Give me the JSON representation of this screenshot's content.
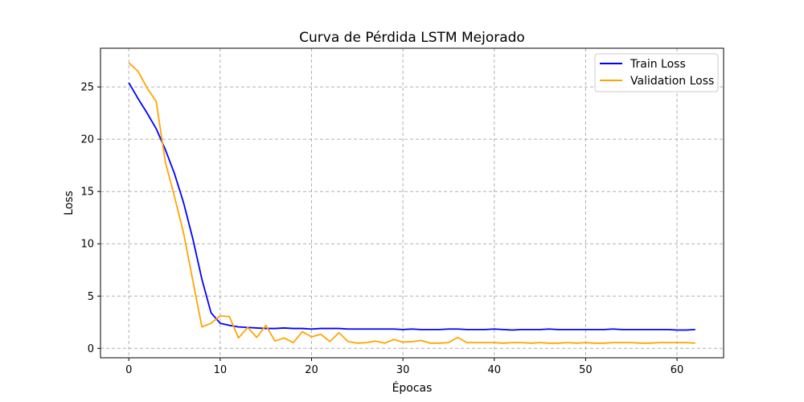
{
  "chart_data": {
    "type": "line",
    "title": "Curva de Pérdida LSTM Mejorado",
    "xlabel": "Épocas",
    "ylabel": "Loss",
    "xlim": [
      -3.1,
      65.1
    ],
    "ylim": [
      -0.9,
      28.7
    ],
    "x_ticks": [
      0,
      10,
      20,
      30,
      40,
      50,
      60
    ],
    "y_ticks": [
      0,
      5,
      10,
      15,
      20,
      25
    ],
    "grid": true,
    "legend_position": "top-right",
    "x": [
      0,
      1,
      2,
      3,
      4,
      5,
      6,
      7,
      8,
      9,
      10,
      11,
      12,
      13,
      14,
      15,
      16,
      17,
      18,
      19,
      20,
      21,
      22,
      23,
      24,
      25,
      26,
      27,
      28,
      29,
      30,
      31,
      32,
      33,
      34,
      35,
      36,
      37,
      38,
      39,
      40,
      41,
      42,
      43,
      44,
      45,
      46,
      47,
      48,
      49,
      50,
      51,
      52,
      53,
      54,
      55,
      56,
      57,
      58,
      59,
      60,
      61,
      62
    ],
    "series": [
      {
        "name": "Train Loss",
        "color": "#0000ff",
        "values": [
          25.4,
          23.9,
          22.5,
          21.0,
          19.0,
          16.7,
          13.9,
          10.5,
          6.6,
          3.4,
          2.4,
          2.2,
          2.05,
          2.0,
          1.95,
          1.9,
          1.9,
          1.95,
          1.9,
          1.9,
          1.85,
          1.9,
          1.9,
          1.9,
          1.85,
          1.85,
          1.85,
          1.85,
          1.85,
          1.85,
          1.8,
          1.85,
          1.8,
          1.8,
          1.8,
          1.85,
          1.85,
          1.8,
          1.8,
          1.8,
          1.85,
          1.8,
          1.75,
          1.8,
          1.8,
          1.8,
          1.85,
          1.8,
          1.8,
          1.8,
          1.8,
          1.8,
          1.8,
          1.85,
          1.8,
          1.8,
          1.8,
          1.8,
          1.8,
          1.8,
          1.75,
          1.75,
          1.8
        ]
      },
      {
        "name": "Validation Loss",
        "color": "#ffa500",
        "values": [
          27.3,
          26.5,
          24.9,
          23.6,
          17.8,
          14.5,
          11.0,
          6.5,
          2.05,
          2.4,
          3.1,
          3.05,
          1.0,
          2.0,
          1.05,
          2.2,
          0.7,
          1.0,
          0.55,
          1.6,
          1.1,
          1.35,
          0.65,
          1.5,
          0.65,
          0.5,
          0.55,
          0.7,
          0.5,
          0.85,
          0.6,
          0.65,
          0.75,
          0.5,
          0.5,
          0.55,
          1.05,
          0.55,
          0.55,
          0.55,
          0.55,
          0.5,
          0.55,
          0.55,
          0.5,
          0.55,
          0.5,
          0.5,
          0.55,
          0.5,
          0.55,
          0.5,
          0.5,
          0.55,
          0.55,
          0.55,
          0.5,
          0.5,
          0.55,
          0.55,
          0.55,
          0.55,
          0.5
        ]
      }
    ]
  }
}
